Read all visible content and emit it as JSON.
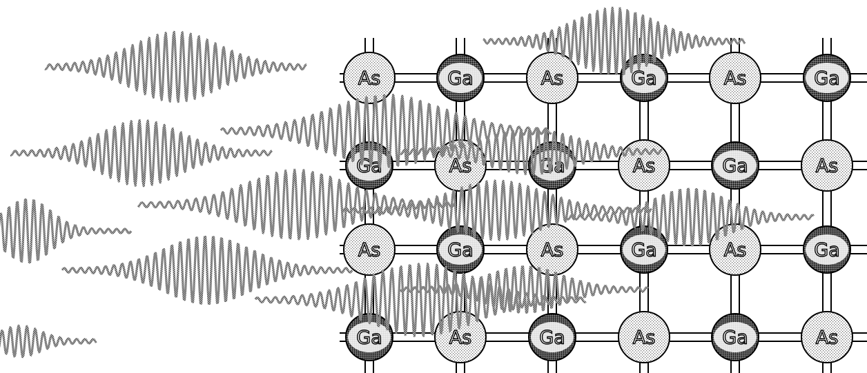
{
  "diagram": {
    "atom_types": {
      "As": {
        "label": "As",
        "shade": "light",
        "fill": "#e8e8e8",
        "dot": "#7a7a7a"
      },
      "Ga": {
        "label": "Ga",
        "shade": "dark",
        "fill": "#5a5a5a",
        "dot": "#1a1a1a"
      }
    },
    "lattice": {
      "rows": [
        [
          "As",
          "Ga",
          "As",
          "Ga",
          "As",
          "Ga"
        ],
        [
          "Ga",
          "As",
          "Ga",
          "As",
          "Ga",
          "As"
        ],
        [
          "As",
          "Ga",
          "As",
          "Ga",
          "As",
          "Ga"
        ],
        [
          "Ga",
          "As",
          "Ga",
          "As",
          "Ga",
          "As"
        ]
      ]
    },
    "colors": {
      "background": "#ffffff",
      "line": "#000000",
      "wave": "#8c8c8c"
    }
  }
}
